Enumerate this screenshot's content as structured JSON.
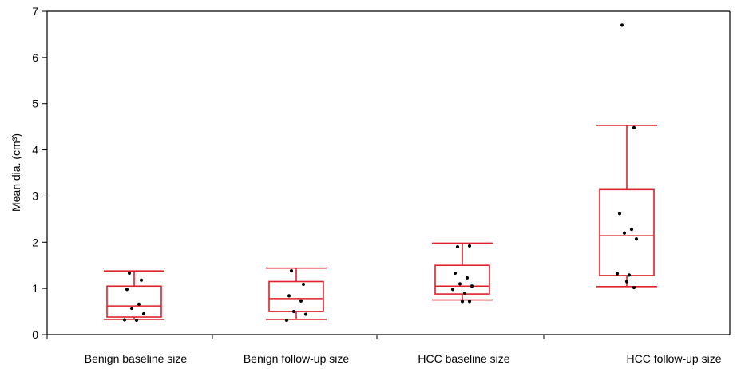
{
  "chart_data": {
    "type": "box",
    "title": "",
    "xlabel": "",
    "ylabel": "Mean dia. (cm³)",
    "ylim": [
      0,
      7
    ],
    "yticks": [
      "0",
      "1",
      "2",
      "3",
      "4",
      "5",
      "6",
      "7"
    ],
    "grid": false,
    "categories": [
      "Benign baseline size",
      "Benign follow-up size",
      "HCC baseline size",
      "HCC follow-up size"
    ],
    "boxes": [
      {
        "whisker_low": 0.33,
        "q1": 0.38,
        "median": 0.62,
        "q3": 1.05,
        "whisker_high": 1.38,
        "points": [
          1.33,
          1.18,
          0.98,
          0.66,
          0.57,
          0.45,
          0.32,
          0.31
        ]
      },
      {
        "whisker_low": 0.33,
        "q1": 0.5,
        "median": 0.78,
        "q3": 1.15,
        "whisker_high": 1.44,
        "points": [
          1.38,
          1.09,
          0.84,
          0.73,
          0.5,
          0.44,
          0.31
        ]
      },
      {
        "whisker_low": 0.75,
        "q1": 0.88,
        "median": 1.05,
        "q3": 1.5,
        "whisker_high": 1.98,
        "points": [
          1.9,
          1.92,
          1.33,
          1.23,
          1.1,
          1.05,
          0.98,
          0.9,
          0.72,
          0.72
        ]
      },
      {
        "whisker_low": 1.04,
        "q1": 1.28,
        "median": 2.14,
        "q3": 3.14,
        "whisker_high": 4.53,
        "points": [
          6.7,
          4.48,
          2.62,
          2.28,
          2.2,
          2.07,
          1.32,
          1.29,
          1.15,
          1.02
        ]
      }
    ],
    "colors": {
      "box": "#e0202a",
      "points": "#000000",
      "axis": "#000000"
    }
  }
}
